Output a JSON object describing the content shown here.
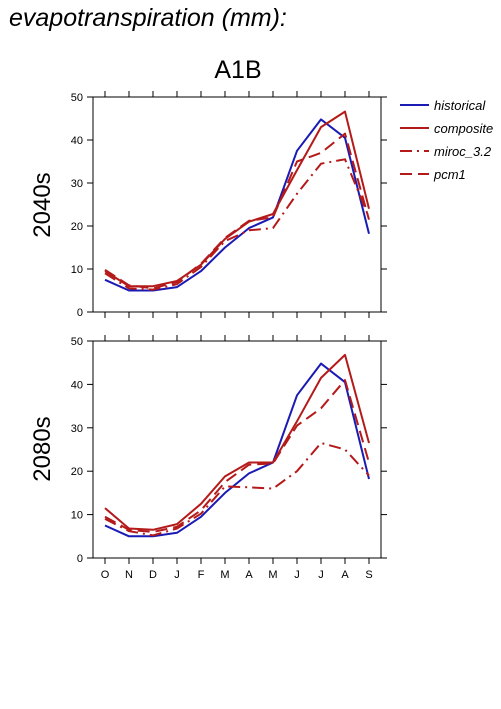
{
  "figure_title": "evapotranspiration (mm):",
  "scenario": "A1B",
  "chart_data": [
    {
      "type": "line",
      "panel_label": "2040s",
      "x_categories": [
        "O",
        "N",
        "D",
        "J",
        "F",
        "M",
        "A",
        "M",
        "J",
        "J",
        "A",
        "S"
      ],
      "ylim": [
        0,
        50
      ],
      "yticks": [
        0,
        10,
        20,
        30,
        40,
        50
      ],
      "series": [
        {
          "name": "historical",
          "color": "#1a1ab4",
          "dash": "solid",
          "values": [
            7.5,
            5.0,
            5.0,
            5.8,
            9.5,
            15.0,
            19.5,
            22.0,
            37.5,
            44.8,
            40.5,
            18.2
          ]
        },
        {
          "name": "composite",
          "color": "#b41a1a",
          "dash": "solid",
          "values": [
            9.5,
            6.0,
            6.0,
            7.2,
            11.0,
            17.0,
            21.0,
            22.8,
            33.0,
            43.0,
            46.6,
            24.0
          ]
        },
        {
          "name": "miroc_3.2",
          "color": "#b41a1a",
          "dash": "dashdot",
          "values": [
            9.0,
            5.5,
            5.2,
            6.5,
            10.5,
            16.5,
            19.0,
            19.5,
            27.5,
            34.5,
            35.5,
            22.0
          ]
        },
        {
          "name": "pcm1",
          "color": "#b41a1a",
          "dash": "dash",
          "values": [
            9.8,
            6.2,
            5.5,
            7.0,
            11.2,
            17.2,
            21.2,
            22.0,
            35.0,
            37.0,
            41.5,
            21.5
          ]
        }
      ]
    },
    {
      "type": "line",
      "panel_label": "2080s",
      "x_categories": [
        "O",
        "N",
        "D",
        "J",
        "F",
        "M",
        "A",
        "M",
        "J",
        "J",
        "A",
        "S"
      ],
      "ylim": [
        0,
        50
      ],
      "yticks": [
        0,
        10,
        20,
        30,
        40,
        50
      ],
      "series": [
        {
          "name": "historical",
          "color": "#1a1ab4",
          "dash": "solid",
          "values": [
            7.5,
            5.0,
            5.0,
            5.8,
            9.5,
            15.0,
            19.5,
            22.0,
            37.5,
            44.8,
            40.5,
            18.2
          ]
        },
        {
          "name": "composite",
          "color": "#b41a1a",
          "dash": "solid",
          "values": [
            11.5,
            6.8,
            6.5,
            7.8,
            12.5,
            18.8,
            22.0,
            22.0,
            31.5,
            41.5,
            46.8,
            26.5
          ]
        },
        {
          "name": "miroc_3.2",
          "color": "#b41a1a",
          "dash": "dashdot",
          "values": [
            9.0,
            6.2,
            5.2,
            6.8,
            10.2,
            16.5,
            16.3,
            16.0,
            20.0,
            26.5,
            25.0,
            19.0
          ]
        },
        {
          "name": "pcm1",
          "color": "#b41a1a",
          "dash": "dash",
          "values": [
            9.5,
            6.5,
            6.0,
            7.2,
            11.0,
            17.5,
            21.5,
            21.8,
            30.5,
            34.5,
            41.0,
            22.0
          ]
        }
      ]
    }
  ]
}
